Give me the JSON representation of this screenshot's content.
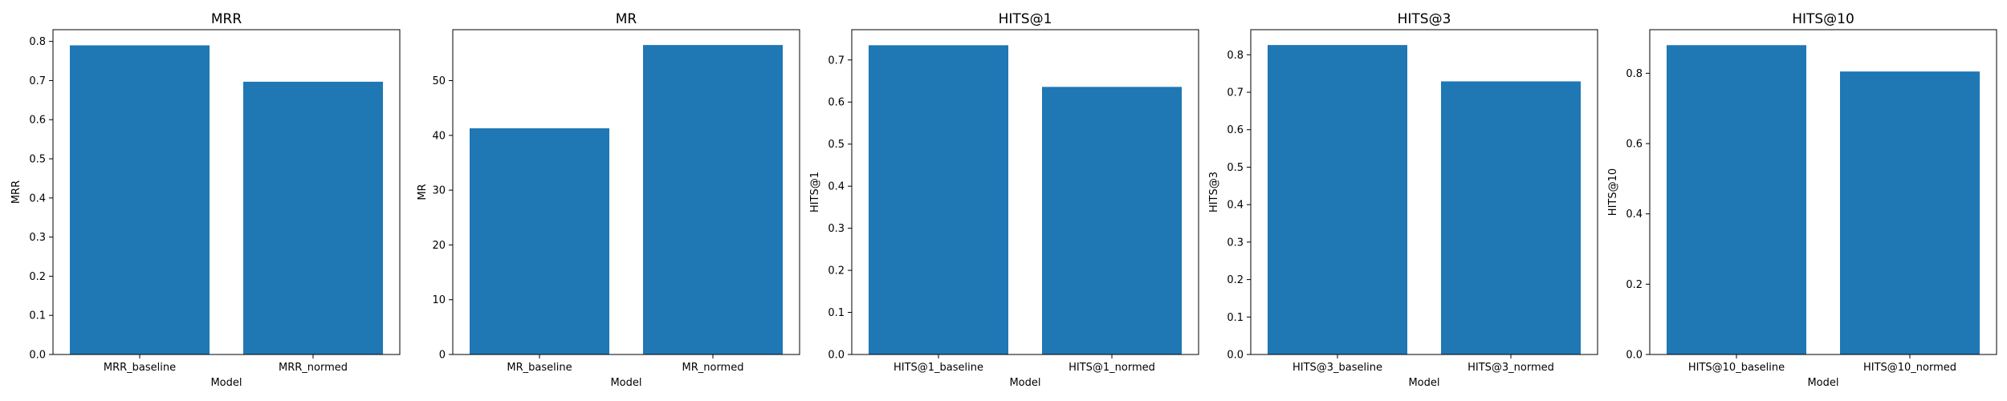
{
  "chart_data": [
    {
      "type": "bar",
      "title": "MRR",
      "xlabel": "Model",
      "ylabel": "MRR",
      "categories": [
        "MRR_baseline",
        "MRR_normed"
      ],
      "values": [
        0.79,
        0.697
      ],
      "ylim": [
        0,
        0.83
      ],
      "yticks": [
        0.0,
        0.1,
        0.2,
        0.3,
        0.4,
        0.5,
        0.6,
        0.7,
        0.8
      ],
      "ytick_labels": [
        "0.0",
        "0.1",
        "0.2",
        "0.3",
        "0.4",
        "0.5",
        "0.6",
        "0.7",
        "0.8"
      ],
      "color": "#1f77b4"
    },
    {
      "type": "bar",
      "title": "MR",
      "xlabel": "Model",
      "ylabel": "MR",
      "categories": [
        "MR_baseline",
        "MR_normed"
      ],
      "values": [
        41.3,
        56.5
      ],
      "ylim": [
        0,
        59.3
      ],
      "yticks": [
        0,
        10,
        20,
        30,
        40,
        50
      ],
      "ytick_labels": [
        "0",
        "10",
        "20",
        "30",
        "40",
        "50"
      ],
      "color": "#1f77b4"
    },
    {
      "type": "bar",
      "title": "HITS@1",
      "xlabel": "Model",
      "ylabel": "HITS@1",
      "categories": [
        "HITS@1_baseline",
        "HITS@1_normed"
      ],
      "values": [
        0.735,
        0.636
      ],
      "ylim": [
        0,
        0.772
      ],
      "yticks": [
        0.0,
        0.1,
        0.2,
        0.3,
        0.4,
        0.5,
        0.6,
        0.7
      ],
      "ytick_labels": [
        "0.0",
        "0.1",
        "0.2",
        "0.3",
        "0.4",
        "0.5",
        "0.6",
        "0.7"
      ],
      "color": "#1f77b4"
    },
    {
      "type": "bar",
      "title": "HITS@3",
      "xlabel": "Model",
      "ylabel": "HITS@3",
      "categories": [
        "HITS@3_baseline",
        "HITS@3_normed"
      ],
      "values": [
        0.826,
        0.729
      ],
      "ylim": [
        0,
        0.867
      ],
      "yticks": [
        0.0,
        0.1,
        0.2,
        0.3,
        0.4,
        0.5,
        0.6,
        0.7,
        0.8
      ],
      "ytick_labels": [
        "0.0",
        "0.1",
        "0.2",
        "0.3",
        "0.4",
        "0.5",
        "0.6",
        "0.7",
        "0.8"
      ],
      "color": "#1f77b4"
    },
    {
      "type": "bar",
      "title": "HITS@10",
      "xlabel": "Model",
      "ylabel": "HITS@10",
      "categories": [
        "HITS@10_baseline",
        "HITS@10_normed"
      ],
      "values": [
        0.88,
        0.805
      ],
      "ylim": [
        0,
        0.924
      ],
      "yticks": [
        0.0,
        0.2,
        0.4,
        0.6,
        0.8
      ],
      "ytick_labels": [
        "0.0",
        "0.2",
        "0.4",
        "0.6",
        "0.8"
      ],
      "color": "#1f77b4"
    }
  ]
}
